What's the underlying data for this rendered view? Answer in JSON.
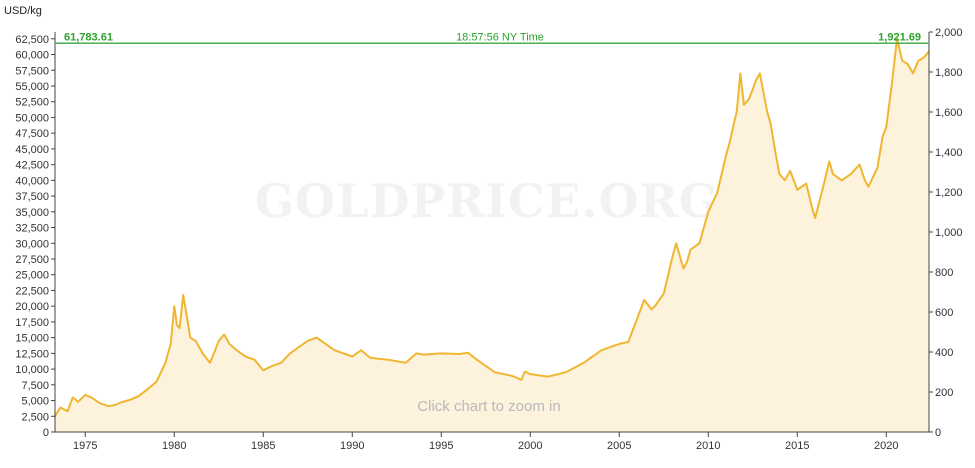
{
  "header": {
    "unit_label": "USD/kg"
  },
  "current": {
    "price_kg": "61,783.61",
    "price_oz": "1,921.69",
    "time": "18:57:56 NY Time"
  },
  "watermark": "GOLDPRICE.ORG",
  "zoom_hint": "Click chart to zoom in",
  "colors": {
    "line": "#f0b631",
    "fill": "#fdf3dc",
    "current_line": "#4caf50",
    "current_text": "#2ba32b"
  },
  "chart_data": {
    "type": "area",
    "x_ticks": [
      "1975",
      "1980",
      "1985",
      "1990",
      "1995",
      "2000",
      "2005",
      "2010",
      "2015",
      "2020"
    ],
    "y_left_ticks": [
      "0",
      "2,500",
      "5,000",
      "7,500",
      "10,000",
      "12,500",
      "15,000",
      "17,500",
      "20,000",
      "22,500",
      "25,000",
      "27,500",
      "30,000",
      "32,500",
      "35,000",
      "37,500",
      "40,000",
      "42,500",
      "45,000",
      "47,500",
      "50,000",
      "52,500",
      "55,000",
      "57,500",
      "60,000",
      "62,500"
    ],
    "y_right_ticks": [
      "0",
      "200",
      "400",
      "600",
      "800",
      "1,000",
      "1,200",
      "1,400",
      "1,600",
      "1,800",
      "2,000"
    ],
    "xlim": [
      1973.3,
      2022.4
    ],
    "ylim_left": [
      0,
      62500
    ],
    "ylim_right": [
      0,
      2000
    ],
    "current_value_kg": 61783.61,
    "x": [
      1973.3,
      1973.6,
      1974.0,
      1974.3,
      1974.6,
      1975.0,
      1975.4,
      1975.8,
      1976.3,
      1976.7,
      1977.0,
      1977.5,
      1978.0,
      1978.5,
      1979.0,
      1979.5,
      1979.8,
      1980.0,
      1980.15,
      1980.3,
      1980.5,
      1980.7,
      1980.9,
      1981.2,
      1981.6,
      1982.0,
      1982.3,
      1982.5,
      1982.8,
      1983.1,
      1983.5,
      1984.0,
      1984.5,
      1985.0,
      1985.5,
      1986.0,
      1986.5,
      1987.0,
      1987.5,
      1988.0,
      1988.5,
      1989.0,
      1989.5,
      1990.0,
      1990.5,
      1991.0,
      1992.0,
      1993.0,
      1993.6,
      1994.0,
      1995.0,
      1996.0,
      1996.5,
      1997.0,
      1997.5,
      1998.0,
      1999.0,
      1999.5,
      1999.7,
      2000.0,
      2001.0,
      2002.0,
      2003.0,
      2004.0,
      2005.0,
      2005.5,
      2006.0,
      2006.4,
      2006.8,
      2007.0,
      2007.5,
      2008.0,
      2008.2,
      2008.6,
      2008.8,
      2009.0,
      2009.5,
      2010.0,
      2010.5,
      2011.0,
      2011.2,
      2011.6,
      2011.8,
      2012.0,
      2012.3,
      2012.7,
      2012.9,
      2013.3,
      2013.5,
      2013.8,
      2014.0,
      2014.3,
      2014.6,
      2015.0,
      2015.5,
      2015.8,
      2016.0,
      2016.5,
      2016.8,
      2017.0,
      2017.5,
      2018.0,
      2018.5,
      2018.8,
      2019.0,
      2019.5,
      2019.8,
      2020.0,
      2020.3,
      2020.6,
      2020.9,
      2021.2,
      2021.5,
      2021.8,
      2022.1,
      2022.4
    ],
    "values": [
      2500,
      3900,
      3300,
      5500,
      4800,
      5900,
      5400,
      4600,
      4100,
      4300,
      4700,
      5100,
      5700,
      6800,
      8000,
      11000,
      14000,
      20000,
      17000,
      16500,
      21800,
      18500,
      15000,
      14500,
      12500,
      11000,
      13000,
      14500,
      15500,
      14000,
      13000,
      12000,
      11500,
      9800,
      10500,
      11000,
      12500,
      13500,
      14500,
      15000,
      14000,
      13000,
      12500,
      12000,
      13000,
      11800,
      11500,
      11000,
      12500,
      12300,
      12500,
      12400,
      12600,
      11500,
      10500,
      9500,
      8900,
      8300,
      9600,
      9200,
      8800,
      9500,
      11000,
      13000,
      14000,
      14300,
      18000,
      21000,
      19500,
      20000,
      22000,
      28000,
      30000,
      26000,
      27000,
      29000,
      30000,
      35000,
      38000,
      44000,
      46000,
      51000,
      57000,
      52000,
      53000,
      56000,
      57000,
      51000,
      49000,
      44000,
      41000,
      40000,
      41500,
      38500,
      39500,
      36000,
      34000,
      39500,
      43000,
      41000,
      40000,
      41000,
      42500,
      40000,
      39000,
      42000,
      47000,
      48500,
      55000,
      62500,
      59000,
      58500,
      57000,
      59000,
      59500,
      60500
    ]
  }
}
